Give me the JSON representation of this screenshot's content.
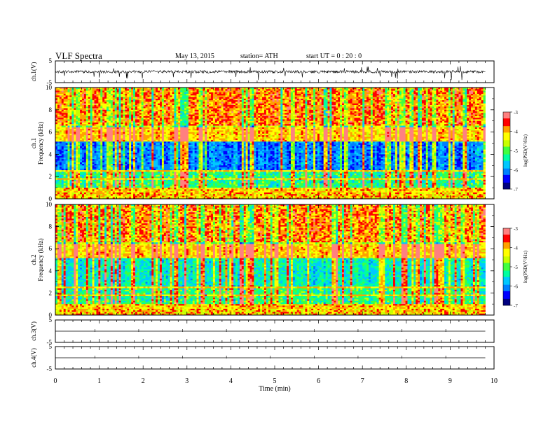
{
  "header": {
    "title": "VLF  Spectra",
    "date": "May 13, 2015",
    "station": "station= ATH",
    "start_ut": "start  UT  =   0  : 20 : 0"
  },
  "chart_data": [
    {
      "type": "line",
      "ylabel": "ch.1(V)",
      "ylim": [
        -5,
        5
      ],
      "yticks": [
        "5",
        "-5"
      ],
      "baseline": 0,
      "description_of_signal": "noisy waveform, amplitude ~1 V with impulsive spikes to ~-3 V",
      "xlim": [
        0,
        10
      ]
    },
    {
      "type": "heatmap",
      "ylabel": "ch.1",
      "ylabel2": "Frequency  (kHz)",
      "ylim": [
        0,
        10
      ],
      "yticks": [
        "0",
        "2",
        "4",
        "6",
        "8",
        "10"
      ],
      "xlim": [
        0,
        10
      ],
      "data_end_min": 9.8,
      "colorbar": {
        "label": "log(PSD(V²/Hz)",
        "range": [
          -7,
          -3
        ],
        "ticks": [
          "-3",
          "-4",
          "-5",
          "-6",
          "-7"
        ]
      }
    },
    {
      "type": "heatmap",
      "ylabel": "ch.2",
      "ylabel2": "Frequency  (kHz)",
      "ylim": [
        0,
        10
      ],
      "yticks": [
        "0",
        "2",
        "4",
        "6",
        "8",
        "10"
      ],
      "xlim": [
        0,
        10
      ],
      "data_end_min": 9.8,
      "colorbar": {
        "label": "log(PSD(V²/Hz)",
        "range": [
          -7,
          -3
        ],
        "ticks": [
          "-3",
          "-4",
          "-5",
          "-6",
          "-7"
        ]
      }
    },
    {
      "type": "line",
      "ylabel": "ch.3(V)",
      "ylim": [
        -5,
        5
      ],
      "yticks": [
        "5",
        "-5"
      ],
      "baseline": 0,
      "xlim": [
        0,
        10
      ]
    },
    {
      "type": "line",
      "ylabel": "ch.4(V)",
      "ylim": [
        -5,
        5
      ],
      "yticks": [
        "5",
        "-5"
      ],
      "baseline": 0,
      "xlim": [
        0,
        10
      ]
    }
  ],
  "xaxis": {
    "label": "Time  (min)",
    "ticks": [
      "0",
      "1",
      "2",
      "3",
      "4",
      "5",
      "6",
      "7",
      "8",
      "9",
      "10"
    ]
  },
  "colors": {
    "colormap": [
      "#000080",
      "#0000ff",
      "#0080ff",
      "#00c8ff",
      "#00ffa0",
      "#40ff40",
      "#c8ff00",
      "#ffff00",
      "#ffa000",
      "#ff0000",
      "#ff8080",
      "#ffffff"
    ]
  }
}
